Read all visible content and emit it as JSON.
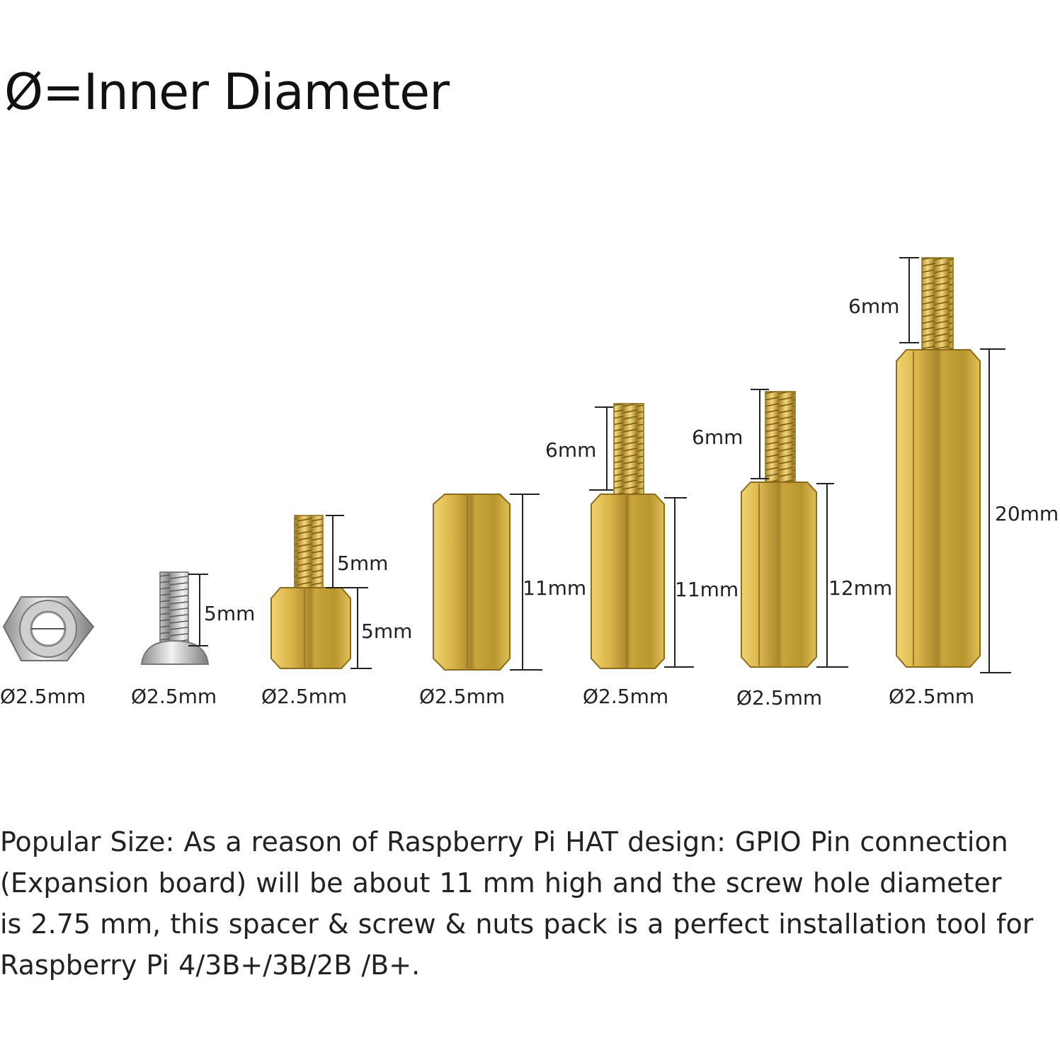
{
  "title": "Ø=Inner Diameter",
  "colors": {
    "brass_light": "#e7c65b",
    "brass_mid": "#c9a53a",
    "brass_dark": "#8c6b1c",
    "steel_light": "#eeeeee",
    "steel_dark": "#8a8a8a",
    "dimension_line": "#222222"
  },
  "parts": [
    {
      "name": "hex-nut",
      "diameter_label": "Ø2.5mm",
      "dimensions": []
    },
    {
      "name": "steel-screw",
      "diameter_label": "Ø2.5mm",
      "dimensions": [
        "5mm"
      ]
    },
    {
      "name": "standoff-5mm",
      "diameter_label": "Ø2.5mm",
      "dimensions": [
        "5mm",
        "5mm"
      ]
    },
    {
      "name": "spacer-11mm",
      "diameter_label": "Ø2.5mm",
      "dimensions": [
        "11mm"
      ]
    },
    {
      "name": "standoff-11mm",
      "diameter_label": "Ø2.5mm",
      "dimensions": [
        "6mm",
        "11mm"
      ]
    },
    {
      "name": "standoff-12mm",
      "diameter_label": "Ø2.5mm",
      "dimensions": [
        "6mm",
        "12mm"
      ]
    },
    {
      "name": "standoff-20mm",
      "diameter_label": "Ø2.5mm",
      "dimensions": [
        "6mm",
        "20mm"
      ]
    }
  ],
  "description": {
    "lines": [
      "Popular Size:  As a reason of Raspberry Pi HAT design: GPIO Pin connection",
      "(Expansion board) will be about 11 mm high and the screw hole diameter",
      "is 2.75 mm, this spacer & screw & nuts pack is a perfect installation tool for",
      "Raspberry Pi 4/3B+/3B/2B /B+."
    ]
  }
}
